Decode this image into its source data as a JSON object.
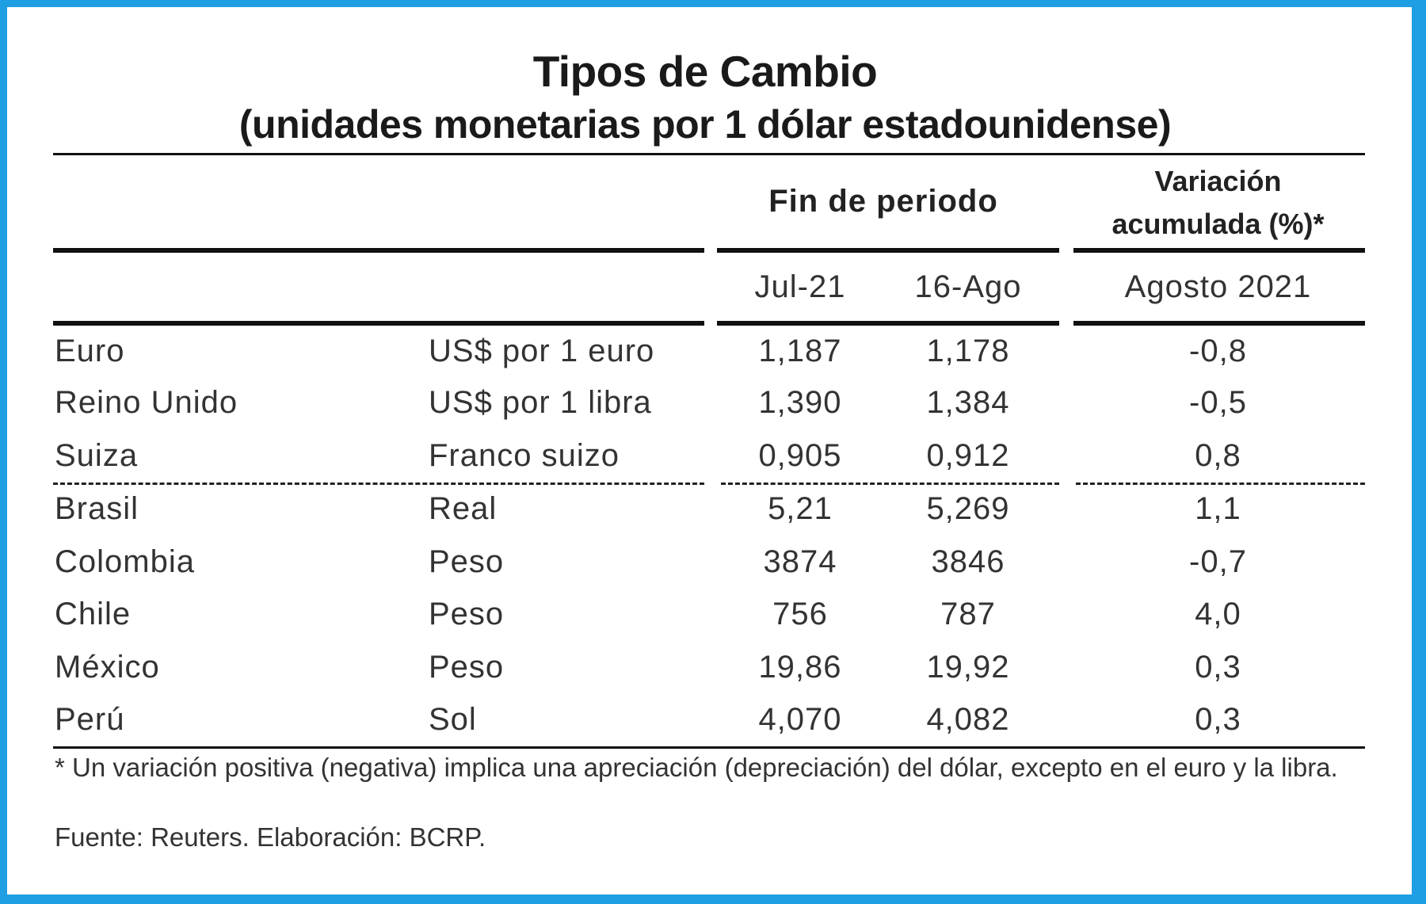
{
  "title": "Tipos de Cambio",
  "subtitle": "(unidades monetarias por 1 dólar estadounidense)",
  "header": {
    "period_group": "Fin de periodo",
    "variation_group_line1": "Variación",
    "variation_group_line2": "acumulada (%)*",
    "col_jul": "Jul-21",
    "col_ago": "16-Ago",
    "col_var": "Agosto 2021"
  },
  "rows": [
    {
      "country": "Euro",
      "unit": "US$ por 1 euro",
      "jul": "1,187",
      "ago": "1,178",
      "var": "-0,8"
    },
    {
      "country": "Reino Unido",
      "unit": "US$ por 1 libra",
      "jul": "1,390",
      "ago": "1,384",
      "var": "-0,5"
    },
    {
      "country": "Suiza",
      "unit": "Franco suizo",
      "jul": "0,905",
      "ago": "0,912",
      "var": "0,8"
    },
    {
      "country": "Brasil",
      "unit": "Real",
      "jul": "5,21",
      "ago": "5,269",
      "var": "1,1"
    },
    {
      "country": "Colombia",
      "unit": "Peso",
      "jul": "3874",
      "ago": "3846",
      "var": "-0,7"
    },
    {
      "country": "Chile",
      "unit": "Peso",
      "jul": "756",
      "ago": "787",
      "var": "4,0"
    },
    {
      "country": "México",
      "unit": "Peso",
      "jul": "19,86",
      "ago": "19,92",
      "var": "0,3"
    },
    {
      "country": "Perú",
      "unit": "Sol",
      "jul": "4,070",
      "ago": "4,082",
      "var": "0,3"
    }
  ],
  "footnote": "* Un variación positiva (negativa) implica una apreciación (depreciación) del dólar, excepto en el euro y la libra.",
  "source": "Fuente: Reuters. Elaboración: BCRP.",
  "colors": {
    "border": "#1e9ee3",
    "background": "#ffffff",
    "text": "#333333"
  }
}
